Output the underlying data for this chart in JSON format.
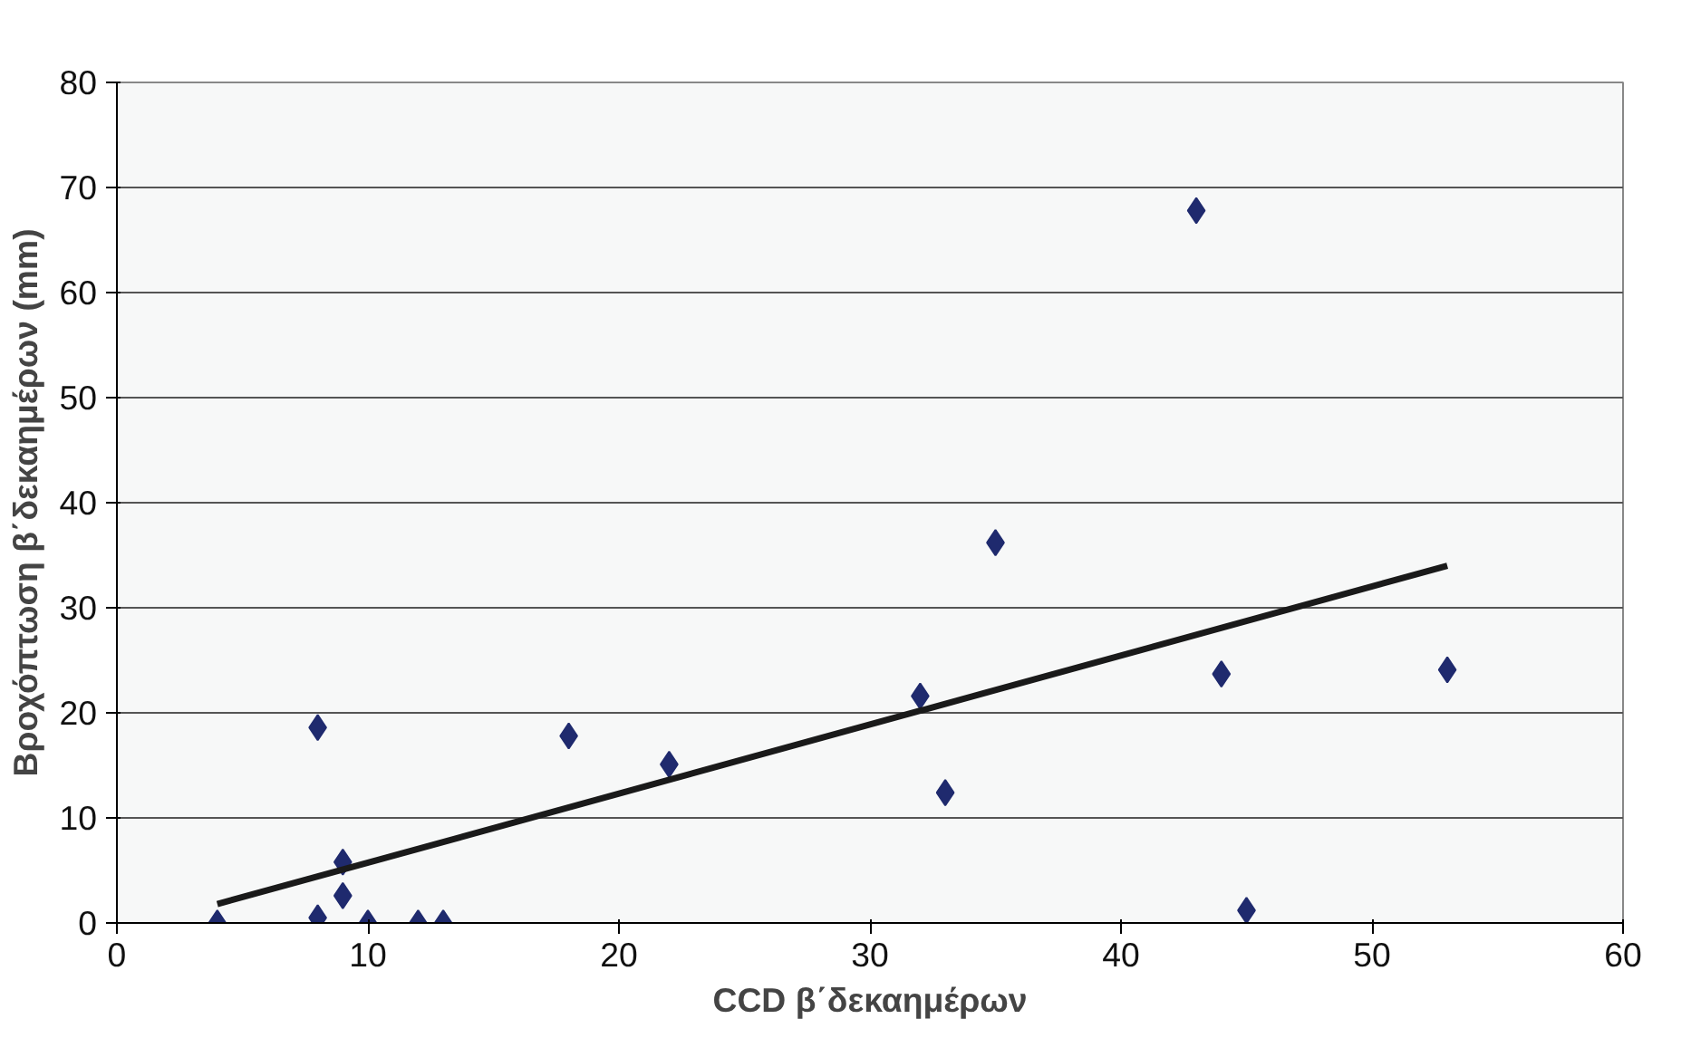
{
  "chart_data": {
    "type": "scatter",
    "xlabel": "CCD β΄δεκαημέρων",
    "ylabel": "Βροχόπτωση β΄δεκαημέρων (mm)",
    "xlim": [
      0,
      60
    ],
    "xticks": [
      0,
      10,
      20,
      30,
      40,
      50,
      60
    ],
    "ylim": [
      0,
      80
    ],
    "yticks": [
      0,
      10,
      20,
      30,
      40,
      50,
      60,
      70,
      80
    ],
    "grid": "y",
    "series": [
      {
        "marker": "diamond",
        "color": "#1f2a6e",
        "x": [
          4,
          8,
          8,
          9,
          9,
          10,
          12,
          13,
          18,
          22,
          32,
          33,
          35,
          43,
          44,
          45,
          53
        ],
        "values": [
          0,
          18.6,
          0.5,
          5.8,
          2.6,
          0,
          0,
          0,
          17.8,
          15.1,
          21.6,
          12.4,
          36.2,
          67.8,
          23.7,
          1.2,
          24.1
        ]
      },
      {
        "type": "line",
        "color": "#1a1a1a",
        "x": [
          4,
          53
        ],
        "values": [
          1.8,
          34
        ]
      }
    ]
  }
}
